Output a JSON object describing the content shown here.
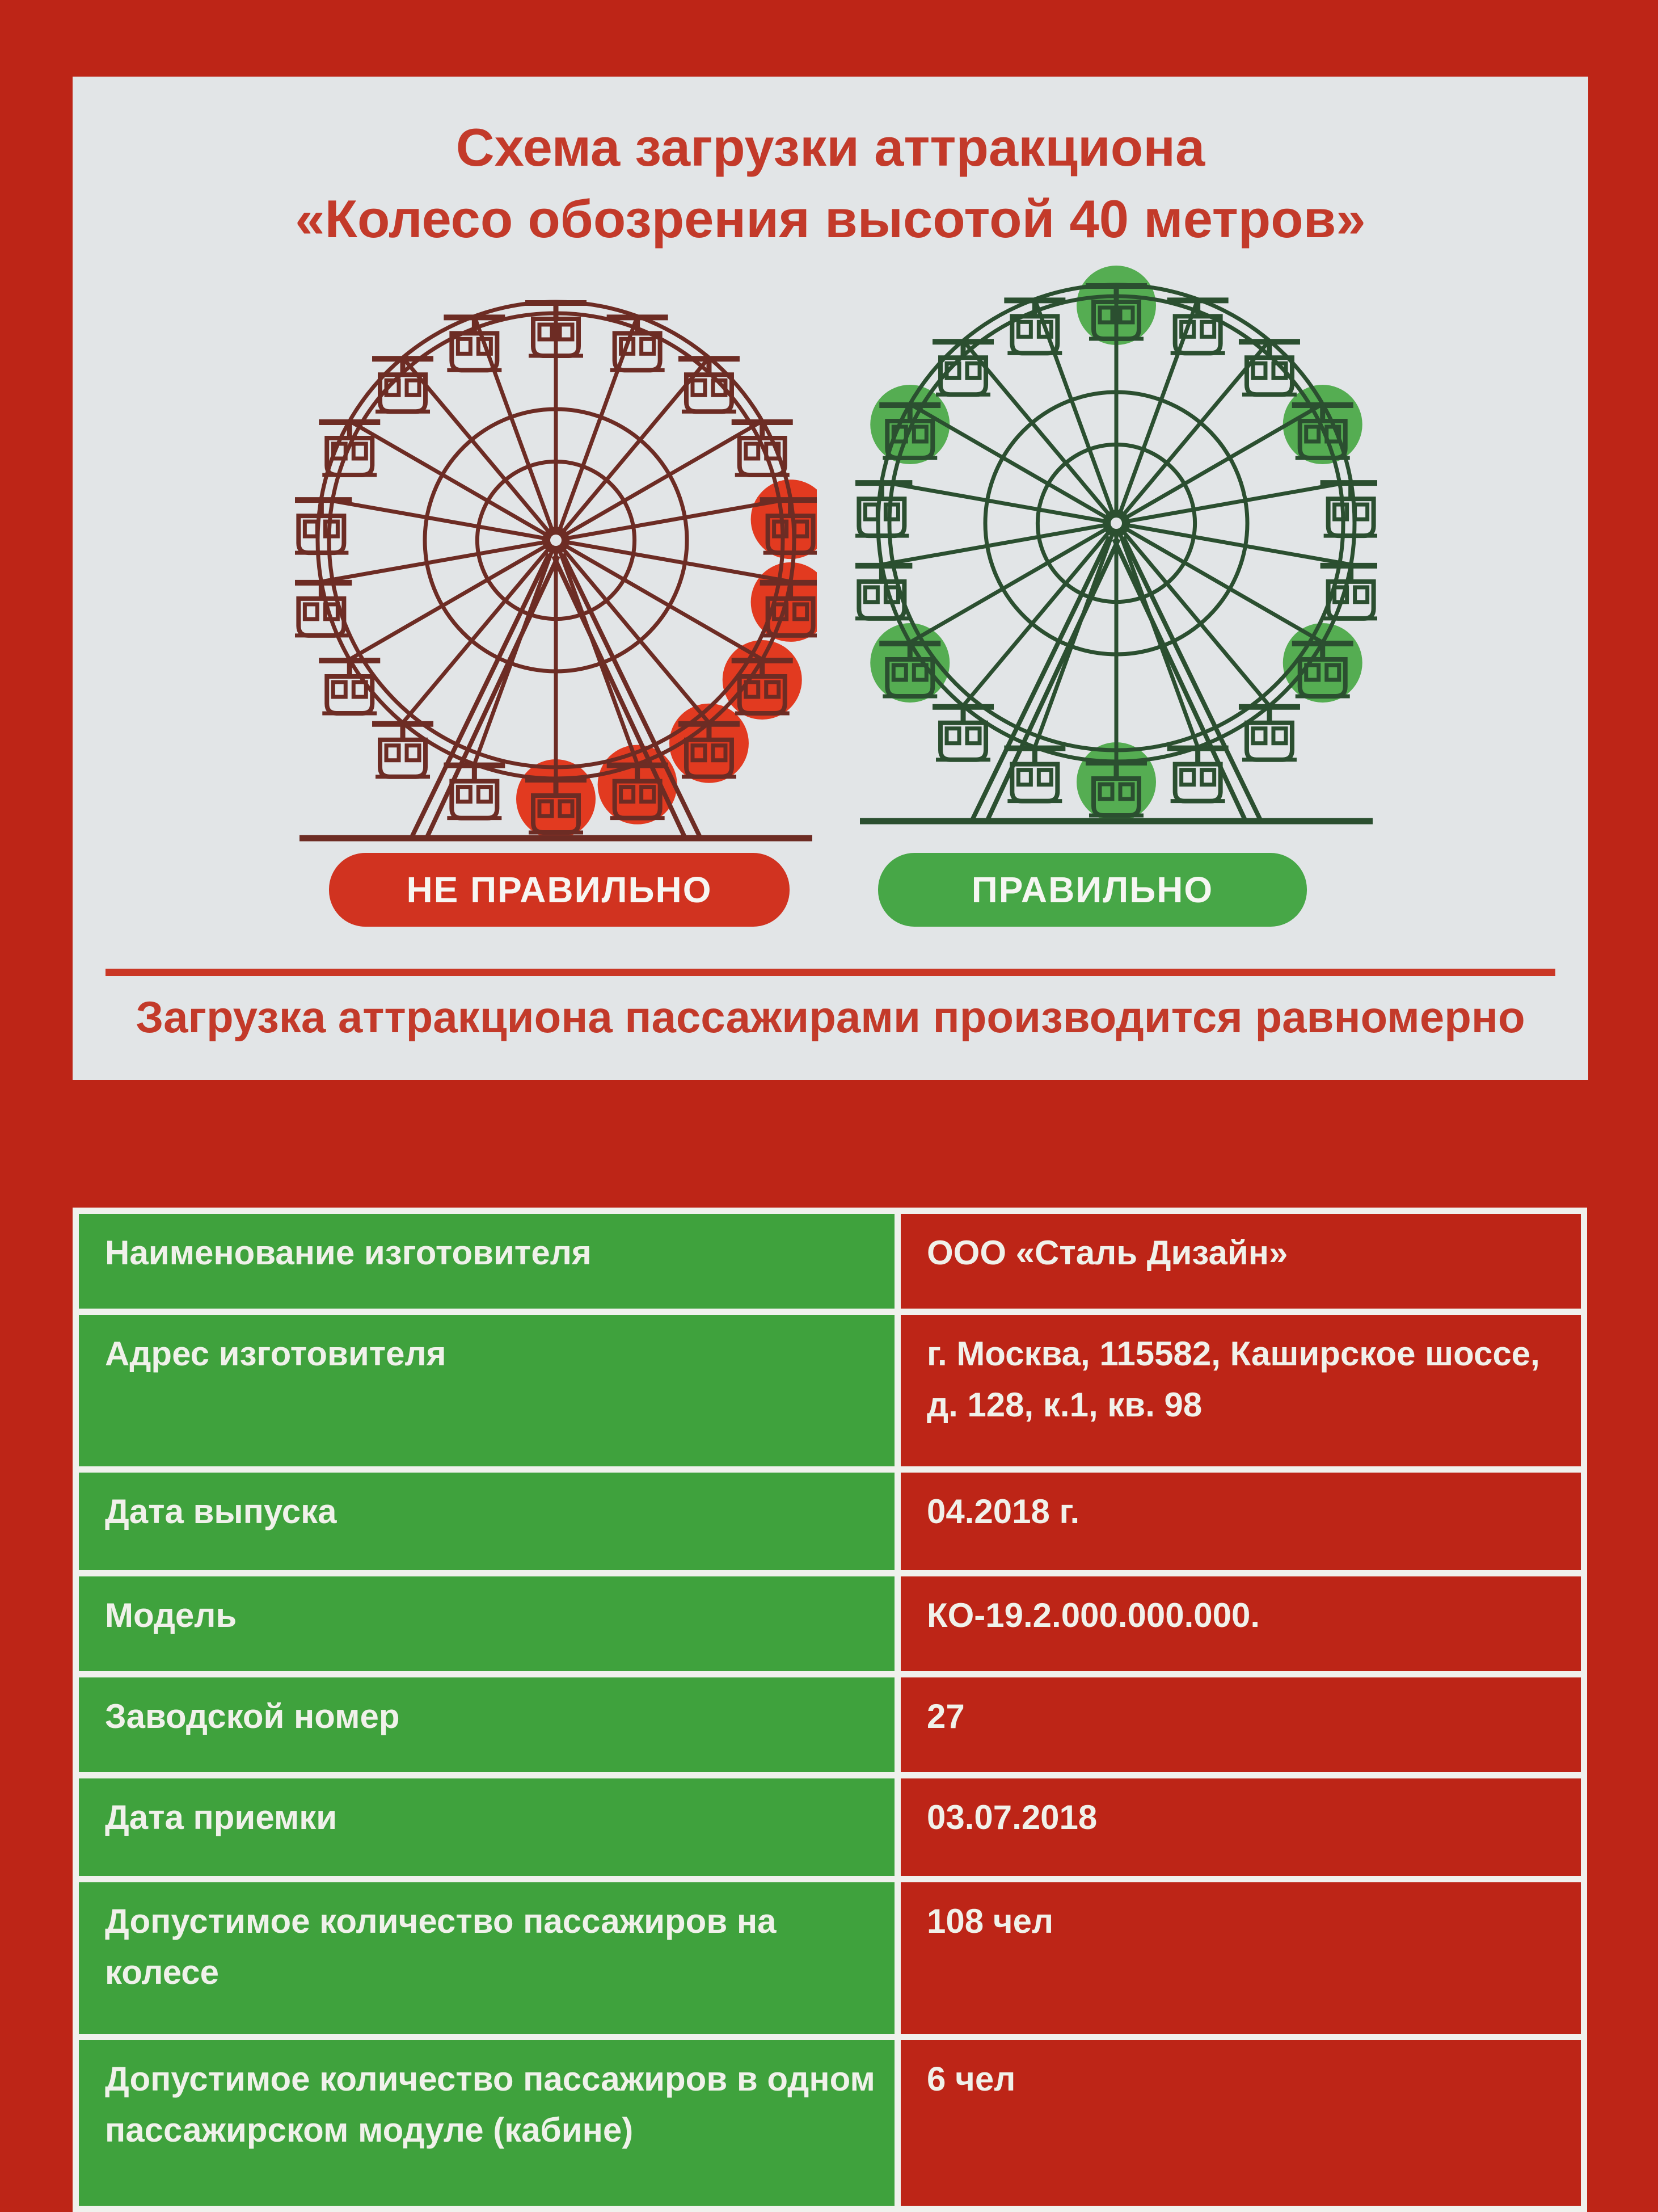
{
  "sign": {
    "title_line1": "Схема загрузки аттракциона",
    "title_line2": "«Колесо обозрения высотой 40 метров»",
    "wrong_caption": "НЕ ПРАВИЛЬНО",
    "correct_caption": "ПРАВИЛЬНО",
    "slogan": "Загрузка аттракциона пассажирами производится равномерно"
  },
  "wheels": {
    "cabin_count": 18,
    "wrong": {
      "meaning": "uneven loading - cabins occupied on one side only",
      "structure_color": "#6d2c24",
      "highlight_color": "#e23a20",
      "highlighted_cabins": [
        4,
        5,
        6,
        7,
        8,
        9
      ]
    },
    "correct": {
      "meaning": "even loading - every third cabin occupied",
      "structure_color": "#2b4f30",
      "highlight_color": "#55ad52",
      "highlighted_cabins": [
        0,
        3,
        6,
        9,
        12,
        15
      ]
    }
  },
  "table": {
    "rows": [
      {
        "label": "Наименование изготовителя",
        "value": "ООО «Сталь Дизайн»"
      },
      {
        "label": "Адрес изготовителя",
        "value": "г. Москва, 115582, Каширское шоссе, д. 128, к.1, кв. 98"
      },
      {
        "label": "Дата выпуска",
        "value": "04.2018 г."
      },
      {
        "label": "Модель",
        "value": "КО-19.2.000.000.000."
      },
      {
        "label": "Заводской номер",
        "value": "27"
      },
      {
        "label": "Дата приемки",
        "value": "03.07.2018"
      },
      {
        "label": "Допустимое количество пассажиров на колесе",
        "value": "108 чел"
      },
      {
        "label": "Допустимое количество пассажиров в одном пассажирском модуле (кабине)",
        "value": "6 чел"
      }
    ]
  },
  "colors": {
    "background_red": "#bd2517",
    "panel_white": "#e2e5e7",
    "accent_text_red": "#c33a2a",
    "separator_red": "#ca3726",
    "pill_wrong_red": "#d13320",
    "pill_correct_green": "#47a747",
    "table_label_green": "#3fa23d",
    "table_border_white": "#f0f1ed"
  }
}
